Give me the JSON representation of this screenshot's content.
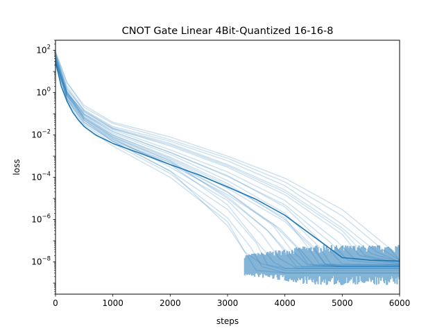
{
  "chart_data": {
    "type": "line",
    "title": "CNOT Gate Linear 4Bit-Quantized 16-16-8",
    "xlabel": "steps",
    "ylabel": "loss",
    "xlim": [
      0,
      6000
    ],
    "ylim": [
      3e-10,
      300
    ],
    "yscale": "log",
    "grid": false,
    "series_color": "#1f77b4",
    "x_ticks": [
      0,
      1000,
      2000,
      3000,
      4000,
      5000,
      6000
    ],
    "y_ticks": [
      {
        "value": 100,
        "base": "10",
        "exp": "2"
      },
      {
        "value": 1,
        "base": "10",
        "exp": "0"
      },
      {
        "value": 0.01,
        "base": "10",
        "exp": "−2"
      },
      {
        "value": 0.0001,
        "base": "10",
        "exp": "−4"
      },
      {
        "value": 1e-06,
        "base": "10",
        "exp": "−6"
      },
      {
        "value": 1e-08,
        "base": "10",
        "exp": "−8"
      }
    ],
    "mean_series": {
      "x": [
        0,
        100,
        200,
        300,
        400,
        500,
        700,
        1000,
        1500,
        2000,
        2500,
        3000,
        3500,
        4000,
        4500,
        5000,
        5500,
        6000
      ],
      "y": [
        30,
        2,
        0.4,
        0.12,
        0.05,
        0.025,
        0.01,
        0.004,
        0.0013,
        0.0004,
        0.00013,
        3.5e-05,
        9e-06,
        1.6e-06,
        1.6e-07,
        1.6e-08,
        1.2e-08,
        1.1e-08
      ]
    },
    "run_series": [
      {
        "x": [
          0,
          200,
          500,
          1000,
          2000,
          3000,
          3300,
          3600,
          4000,
          5000,
          6000
        ],
        "y": [
          50,
          0.5,
          0.04,
          0.005,
          0.0002,
          5e-07,
          3e-08,
          8e-09,
          5e-09,
          5e-09,
          5e-09
        ]
      },
      {
        "x": [
          0,
          200,
          500,
          1000,
          2000,
          3000,
          3500,
          3800,
          4000,
          5000,
          6000
        ],
        "y": [
          40,
          0.8,
          0.05,
          0.006,
          0.0004,
          5e-06,
          1e-07,
          1e-08,
          5e-09,
          5e-09,
          5e-09
        ]
      },
      {
        "x": [
          0,
          200,
          500,
          1000,
          2000,
          3000,
          3700,
          4000,
          4200,
          5000,
          6000
        ],
        "y": [
          60,
          1,
          0.07,
          0.008,
          0.0006,
          1e-05,
          3e-07,
          3e-08,
          6e-09,
          6e-09,
          6e-09
        ]
      },
      {
        "x": [
          0,
          200,
          500,
          1000,
          2000,
          3000,
          3800,
          4200,
          4400,
          5000,
          6000
        ],
        "y": [
          30,
          0.6,
          0.05,
          0.005,
          0.0005,
          2e-05,
          6e-07,
          5e-08,
          8e-09,
          6e-09,
          6e-09
        ]
      },
      {
        "x": [
          0,
          200,
          500,
          1000,
          2000,
          3000,
          4000,
          4500,
          4700,
          5000,
          6000
        ],
        "y": [
          20,
          0.7,
          0.08,
          0.01,
          0.0009,
          5e-05,
          1e-06,
          5e-08,
          8e-09,
          6e-09,
          6e-09
        ]
      },
      {
        "x": [
          0,
          200,
          500,
          1000,
          2000,
          3000,
          4000,
          4700,
          5000,
          6000
        ],
        "y": [
          45,
          1.2,
          0.1,
          0.015,
          0.0015,
          0.00012,
          4e-06,
          6e-08,
          8e-09,
          7e-09
        ]
      },
      {
        "x": [
          0,
          200,
          500,
          1000,
          2000,
          3000,
          4000,
          5000,
          5300,
          6000
        ],
        "y": [
          25,
          0.9,
          0.12,
          0.02,
          0.003,
          0.0003,
          1.5e-05,
          2e-07,
          2e-08,
          8e-09
        ]
      },
      {
        "x": [
          0,
          200,
          500,
          1000,
          2000,
          3000,
          4000,
          5000,
          5600,
          6000
        ],
        "y": [
          70,
          2,
          0.15,
          0.025,
          0.005,
          0.0006,
          4e-05,
          6e-07,
          3e-08,
          1e-08
        ]
      },
      {
        "x": [
          0,
          200,
          500,
          1000,
          2000,
          3000,
          4000,
          5000,
          5700,
          6000
        ],
        "y": [
          80,
          3,
          0.2,
          0.035,
          0.006,
          0.0008,
          6e-05,
          1.5e-06,
          4e-08,
          1.2e-08
        ]
      },
      {
        "x": [
          0,
          200,
          500,
          1000,
          2000,
          3000,
          3400,
          3600,
          4000,
          5000,
          6000
        ],
        "y": [
          35,
          0.5,
          0.03,
          0.004,
          0.00015,
          1.2e-06,
          5e-08,
          6e-09,
          3e-09,
          3e-09,
          3e-09
        ]
      },
      {
        "x": [
          0,
          200,
          500,
          1000,
          2000,
          3000,
          3600,
          3900,
          4200,
          5000,
          6000
        ],
        "y": [
          55,
          0.8,
          0.06,
          0.007,
          0.0003,
          8e-06,
          2e-07,
          1.5e-08,
          5e-09,
          5e-09,
          5e-09
        ]
      },
      {
        "x": [
          0,
          200,
          500,
          1000,
          2000,
          3000,
          3900,
          4300,
          4500,
          5000,
          6000
        ],
        "y": [
          25,
          0.6,
          0.04,
          0.006,
          0.0004,
          1.5e-05,
          4e-07,
          3e-08,
          7e-09,
          6e-09,
          6e-09
        ]
      },
      {
        "x": [
          0,
          200,
          500,
          1000,
          2000,
          3000,
          4000,
          4600,
          4800,
          5000,
          6000
        ],
        "y": [
          45,
          1,
          0.09,
          0.012,
          0.0012,
          7e-05,
          2e-06,
          5e-08,
          8e-09,
          7e-09,
          7e-09
        ]
      },
      {
        "x": [
          0,
          200,
          500,
          1000,
          2000,
          3000,
          4000,
          4900,
          5200,
          6000
        ],
        "y": [
          30,
          1.1,
          0.1,
          0.018,
          0.002,
          0.00018,
          8e-06,
          1e-07,
          1.5e-08,
          8e-09
        ]
      },
      {
        "x": [
          0,
          200,
          500,
          1000,
          2000,
          3000,
          4000,
          5000,
          5500,
          6000
        ],
        "y": [
          60,
          1.5,
          0.14,
          0.022,
          0.004,
          0.0004,
          2.5e-05,
          4e-07,
          2.5e-08,
          1e-08
        ]
      },
      {
        "x": [
          0,
          200,
          500,
          1000,
          2000,
          3000,
          4000,
          5000,
          5800,
          6000
        ],
        "y": [
          90,
          3,
          0.25,
          0.04,
          0.008,
          0.001,
          9e-05,
          3e-06,
          5e-08,
          1.2e-08
        ]
      },
      {
        "x": [
          0,
          200,
          500,
          1000,
          2000,
          3000,
          3300,
          3500,
          4000,
          5000,
          6000
        ],
        "y": [
          40,
          0.4,
          0.025,
          0.003,
          0.0001,
          8e-07,
          3e-08,
          4e-09,
          3e-09,
          3e-09,
          3e-09
        ]
      },
      {
        "x": [
          0,
          200,
          500,
          1000,
          2000,
          3000,
          3700,
          4100,
          4300,
          5000,
          6000
        ],
        "y": [
          35,
          0.7,
          0.05,
          0.007,
          0.0005,
          1.2e-05,
          3e-07,
          2e-08,
          6e-09,
          6e-09,
          6e-09
        ]
      },
      {
        "x": [
          0,
          200,
          500,
          1000,
          2000,
          3000,
          4000,
          4400,
          4600,
          5000,
          6000
        ],
        "y": [
          50,
          0.9,
          0.07,
          0.01,
          0.0008,
          4e-05,
          1.2e-06,
          5e-08,
          8e-09,
          6e-09,
          6e-09
        ]
      },
      {
        "x": [
          0,
          200,
          500,
          1000,
          2000,
          3000,
          4000,
          4800,
          5100,
          6000
        ],
        "y": [
          28,
          0.9,
          0.09,
          0.014,
          0.0015,
          0.00011,
          5e-06,
          8e-08,
          1.2e-08,
          7e-09
        ]
      },
      {
        "x": [
          0,
          200,
          500,
          1000,
          2000,
          3000,
          4000,
          5000,
          5400,
          6000
        ],
        "y": [
          65,
          1.6,
          0.13,
          0.02,
          0.0035,
          0.00035,
          2e-05,
          3e-07,
          2e-08,
          9e-09
        ]
      },
      {
        "x": [
          0,
          200,
          500,
          1000,
          2000,
          3000,
          3500,
          3700,
          4000,
          5000,
          6000
        ],
        "y": [
          20,
          0.5,
          0.035,
          0.005,
          0.0002,
          3e-06,
          8e-08,
          7e-09,
          4e-09,
          4e-09,
          4e-09
        ]
      },
      {
        "x": [
          0,
          200,
          500,
          1000,
          2000,
          3000,
          3800,
          4100,
          4400,
          5000,
          6000
        ],
        "y": [
          75,
          1.2,
          0.06,
          0.008,
          0.0006,
          2e-05,
          5e-07,
          4e-08,
          7e-09,
          6e-09,
          6e-09
        ]
      },
      {
        "x": [
          0,
          200,
          500,
          1000,
          2000,
          3000,
          4000,
          4500,
          4700,
          5000,
          6000
        ],
        "y": [
          38,
          0.8,
          0.06,
          0.009,
          0.0007,
          3e-05,
          8e-07,
          4e-08,
          8e-09,
          7e-09,
          7e-09
        ]
      }
    ]
  }
}
